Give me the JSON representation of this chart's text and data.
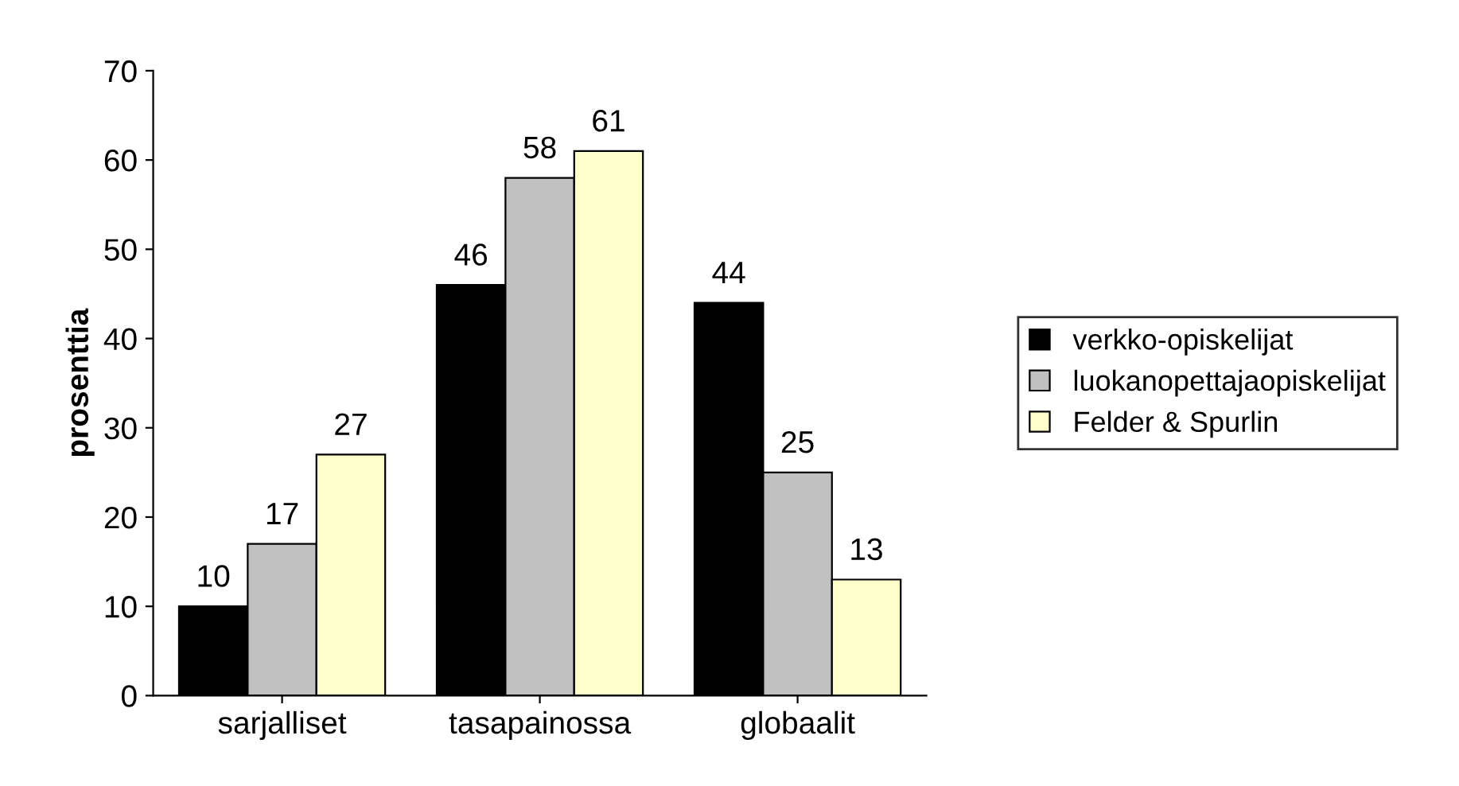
{
  "chart_data": {
    "type": "bar",
    "ylabel": "prosenttia",
    "categories": [
      "sarjalliset",
      "tasapainossa",
      "globaalit"
    ],
    "series": [
      {
        "name": "verkko-opiskelijat",
        "color": "#000000",
        "values": [
          10,
          46,
          44
        ]
      },
      {
        "name": "luokanopettajaopiskelijat",
        "color": "#c0c0c0",
        "values": [
          17,
          58,
          25
        ]
      },
      {
        "name": "Felder & Spurlin",
        "color": "#ffffcc",
        "values": [
          27,
          61,
          13
        ]
      }
    ],
    "ylim": [
      0,
      70
    ],
    "yticks": [
      0,
      10,
      20,
      30,
      40,
      50,
      60,
      70
    ],
    "data_labels": true,
    "legend": "right",
    "grid": false
  }
}
